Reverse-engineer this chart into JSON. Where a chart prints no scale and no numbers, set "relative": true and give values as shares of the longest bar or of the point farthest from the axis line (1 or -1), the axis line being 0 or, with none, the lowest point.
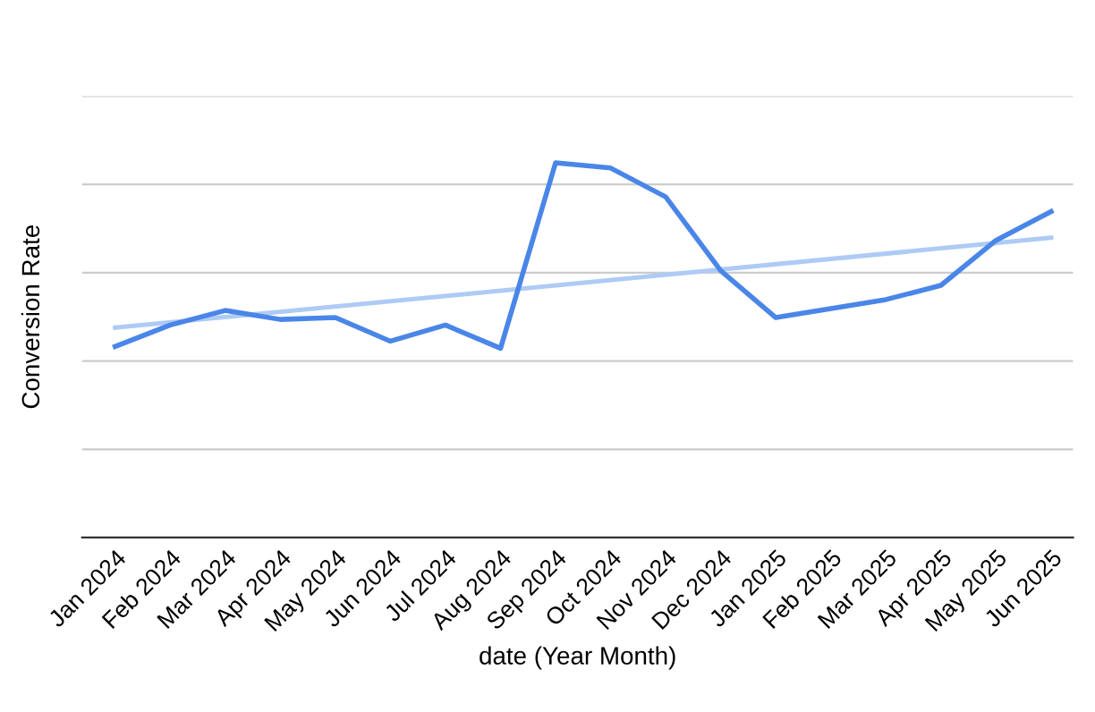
{
  "chart_data": {
    "type": "line",
    "relative": true,
    "xlabel": "date (Year Month)",
    "ylabel": "Conversion Rate",
    "grid": "y",
    "legend": false,
    "marker": "none",
    "line_style": "solid",
    "categories": [
      "Jan 2024",
      "Feb 2024",
      "Mar 2024",
      "Apr 2024",
      "May 2024",
      "Jun 2024",
      "Jul 2024",
      "Aug 2024",
      "Sep 2024",
      "Oct 2024",
      "Nov 2024",
      "Dec 2024",
      "Jan 2025",
      "Feb 2025",
      "Mar 2025",
      "Apr 2025",
      "May 2025",
      "Jun 2025"
    ],
    "series": [
      {
        "color": "#4a86e8",
        "values": [
          0.51,
          0.567,
          0.606,
          0.582,
          0.587,
          0.524,
          0.567,
          0.505,
          1,
          0.986,
          0.909,
          0.712,
          0.587,
          0.611,
          0.635,
          0.673,
          0.793,
          0.87
        ]
      },
      {
        "color": "#aecbf5",
        "values": [
          0.56,
          null,
          null,
          null,
          null,
          null,
          null,
          null,
          null,
          null,
          null,
          null,
          null,
          null,
          null,
          null,
          null,
          0.8
        ]
      }
    ]
  }
}
